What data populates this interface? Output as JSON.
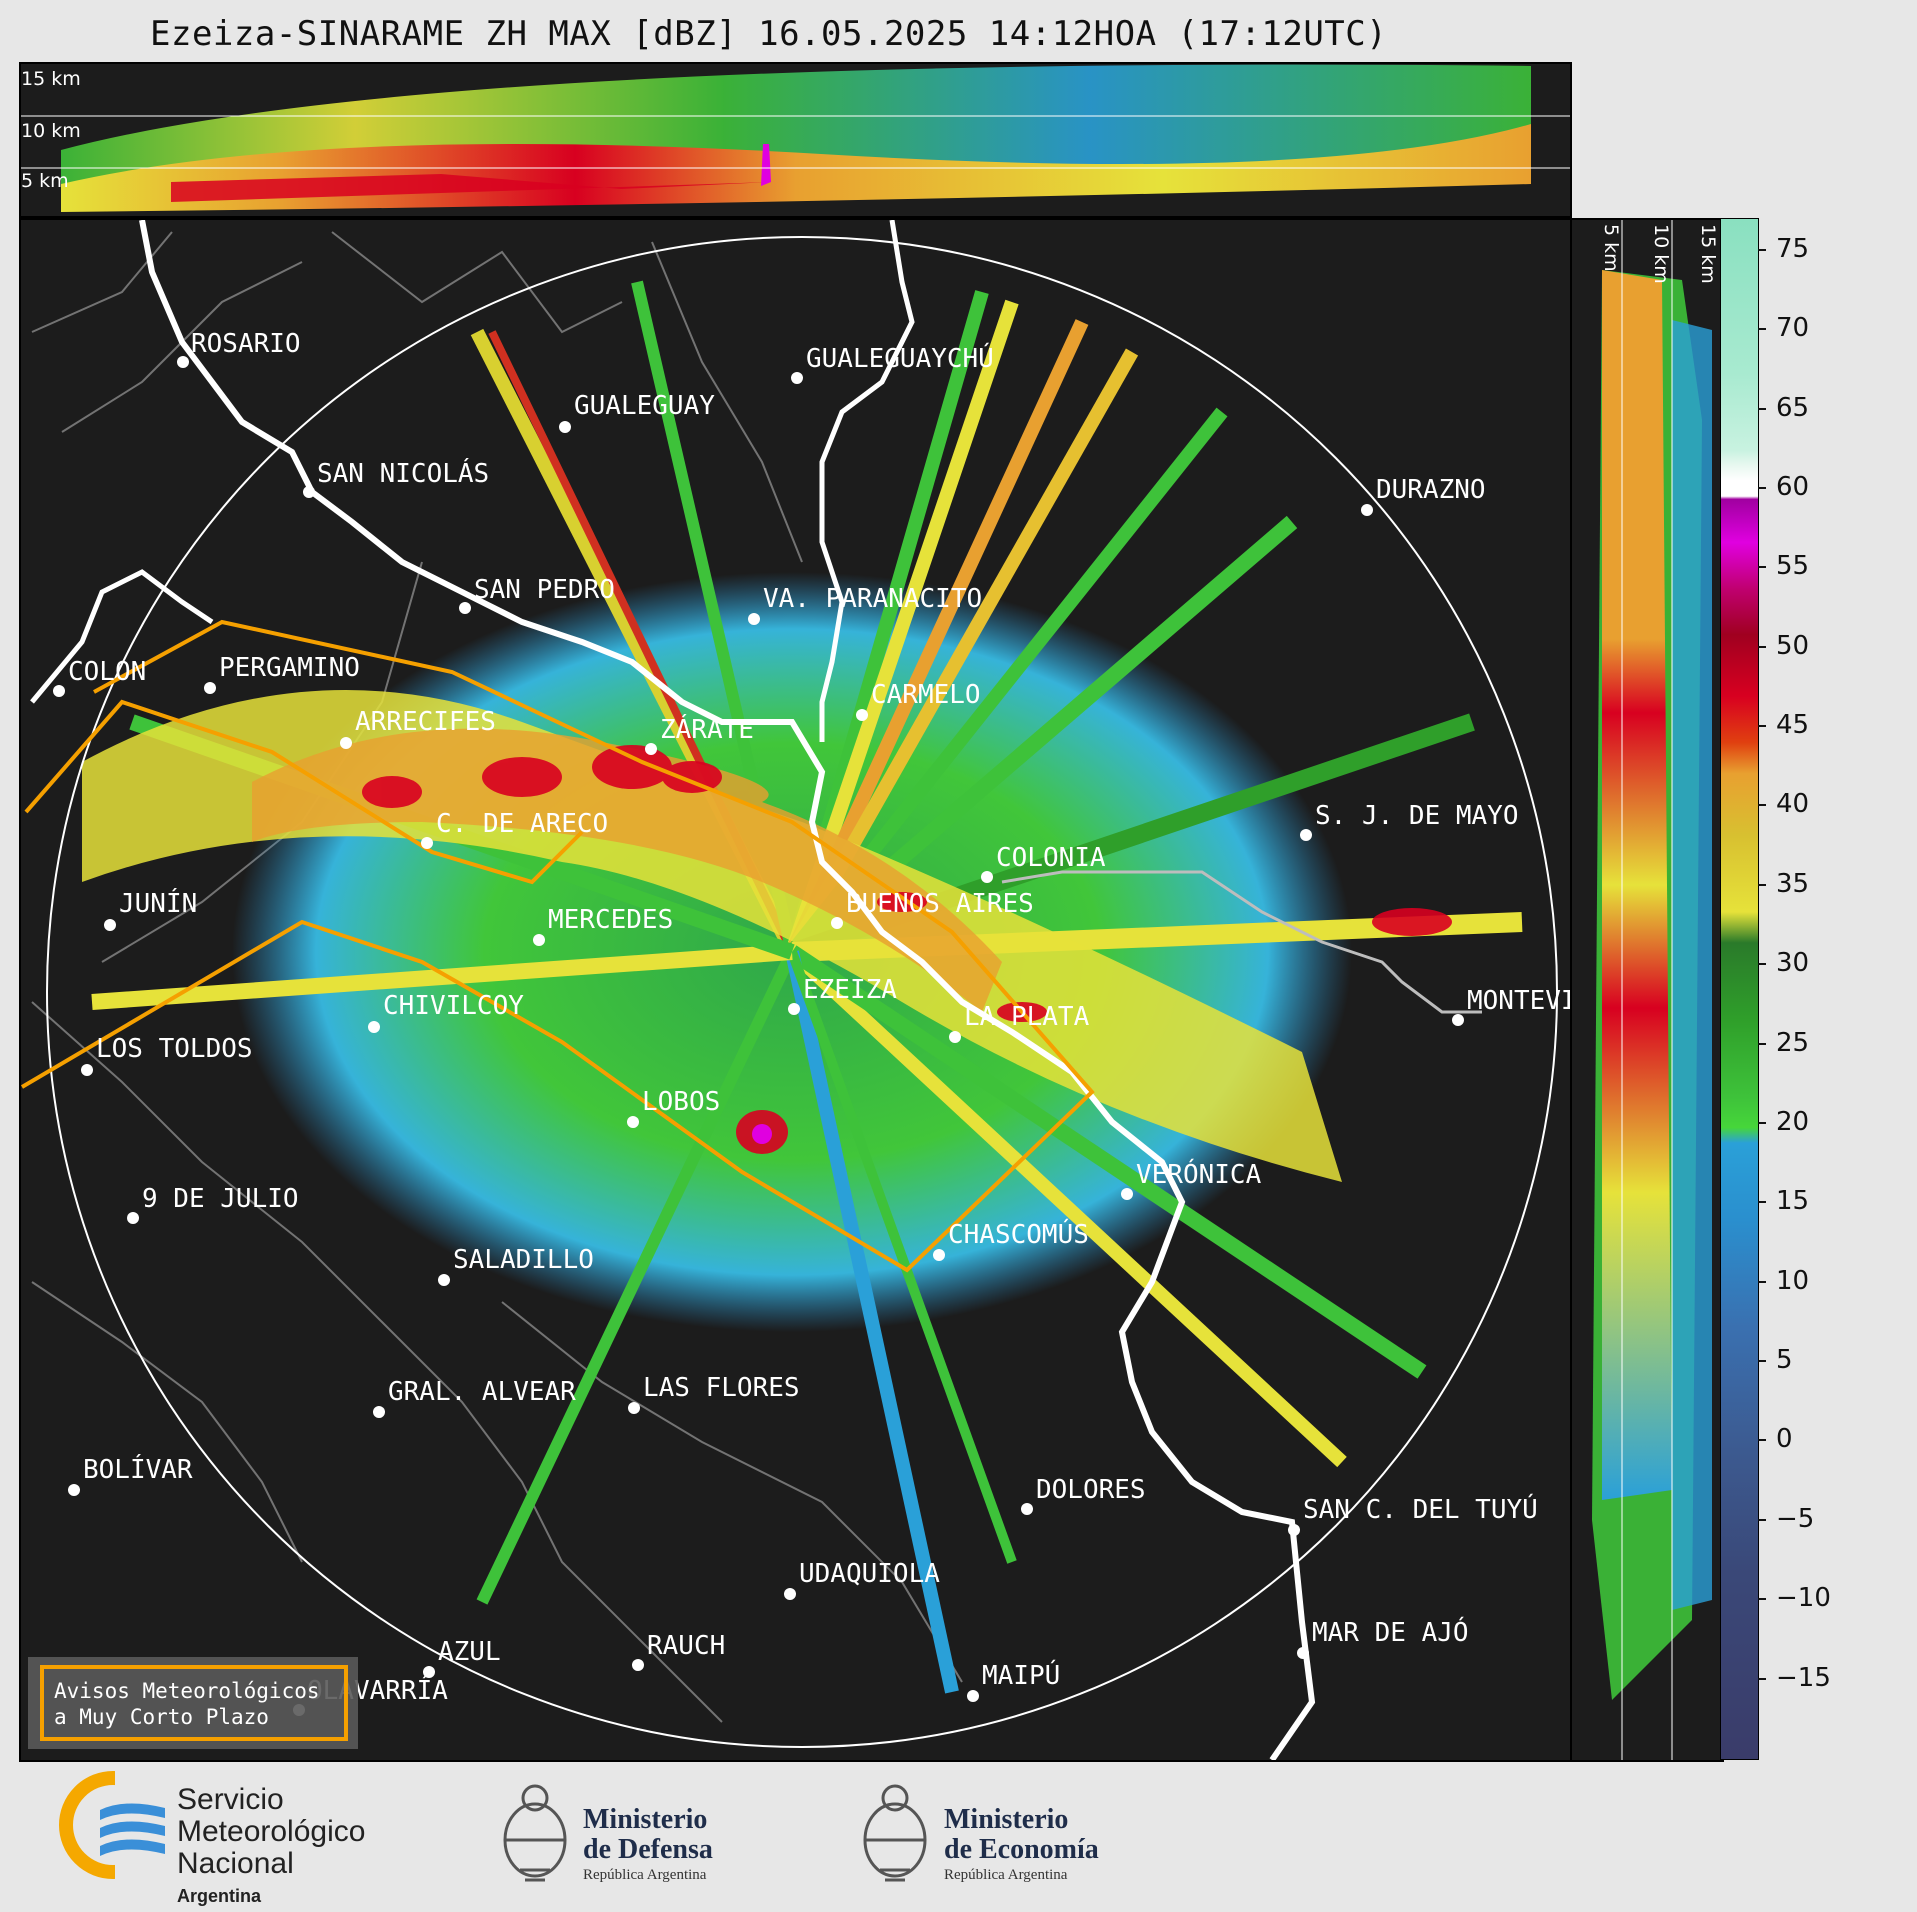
{
  "title": "Ezeiza-SINARAME ZH MAX [dBZ] 16.05.2025 14:12HOA (17:12UTC)",
  "top_panel": {
    "height_labels": [
      "15 km",
      "10 km",
      "5 km"
    ]
  },
  "side_panel": {
    "height_labels": [
      "5 km",
      "10 km",
      "15 km"
    ]
  },
  "map": {
    "cities": [
      {
        "name": "ROSARIO"
      },
      {
        "name": "GUALEGUAYCHÚ"
      },
      {
        "name": "GUALEGUAY"
      },
      {
        "name": "SAN NICOLÁS"
      },
      {
        "name": "DURAZNO"
      },
      {
        "name": "SAN PEDRO"
      },
      {
        "name": "VA. PARANACITO"
      },
      {
        "name": "COLON"
      },
      {
        "name": "PERGAMINO"
      },
      {
        "name": "CARMELO"
      },
      {
        "name": "ARRECIFES"
      },
      {
        "name": "ZÁRATE"
      },
      {
        "name": "S. J. DE MAYO"
      },
      {
        "name": "C. DE ARECO"
      },
      {
        "name": "COLONIA"
      },
      {
        "name": "JUNÍN"
      },
      {
        "name": "MERCEDES"
      },
      {
        "name": "BUENOS AIRES"
      },
      {
        "name": "EZEIZA"
      },
      {
        "name": "MONTEVIDEO"
      },
      {
        "name": "CHIVILCOY"
      },
      {
        "name": "LA PLATA"
      },
      {
        "name": "LOS TOLDOS"
      },
      {
        "name": "LOBOS"
      },
      {
        "name": "VERÓNICA"
      },
      {
        "name": "9 DE JULIO"
      },
      {
        "name": "CHASCOMÚS"
      },
      {
        "name": "SALADILLO"
      },
      {
        "name": "GRAL. ALVEAR"
      },
      {
        "name": "LAS FLORES"
      },
      {
        "name": "BOLÍVAR"
      },
      {
        "name": "DOLORES"
      },
      {
        "name": "SAN C. DEL TUYÚ"
      },
      {
        "name": "UDAQUIOLA"
      },
      {
        "name": "MAR DE AJÓ"
      },
      {
        "name": "AZUL"
      },
      {
        "name": "RAUCH"
      },
      {
        "name": "OLAVARRÍA"
      },
      {
        "name": "MAIPÚ"
      }
    ],
    "legend_box": {
      "line1": "Avisos Meteorológicos",
      "line2": "a Muy Corto Plazo"
    }
  },
  "colorbar": {
    "unit": "dBZ",
    "ticks": [
      "75",
      "70",
      "65",
      "60",
      "55",
      "50",
      "45",
      "40",
      "35",
      "30",
      "25",
      "20",
      "15",
      "10",
      "5",
      "0",
      "−5",
      "−10",
      "−15"
    ],
    "range": [
      -20,
      77
    ]
  },
  "logos": {
    "smn": {
      "line1": "Servicio",
      "line2": "Meteorológico",
      "line3": "Nacional",
      "line4": "Argentina"
    },
    "defensa": {
      "line1": "Ministerio",
      "line2": "de Defensa",
      "line3": "República Argentina"
    },
    "economia": {
      "line1": "Ministerio",
      "line2": "de Economía",
      "line3": "República Argentina"
    }
  },
  "colors": {
    "background": "#1c1c1c",
    "warning_polygon": "#f5a000",
    "range_ring": "#ffffff",
    "river": "#ffffff"
  }
}
